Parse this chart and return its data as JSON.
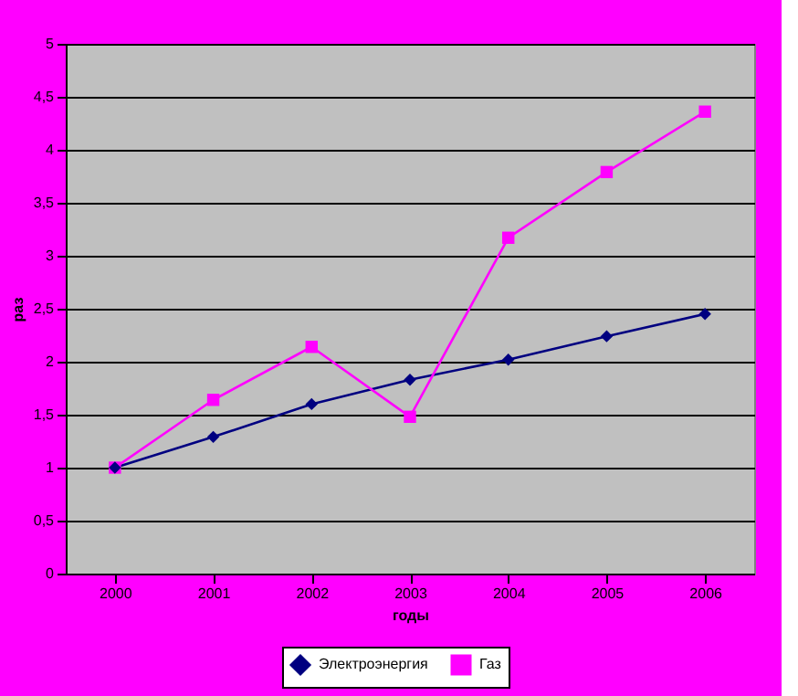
{
  "chart_data": {
    "type": "line",
    "xlabel": "годы",
    "ylabel": "раз",
    "categories": [
      "2000",
      "2001",
      "2002",
      "2003",
      "2004",
      "2005",
      "2006"
    ],
    "series": [
      {
        "name": "Электроэнергия",
        "color": "#000080",
        "marker": "diamond",
        "values": [
          1.0,
          1.29,
          1.6,
          1.83,
          2.02,
          2.24,
          2.45
        ]
      },
      {
        "name": "Газ",
        "color": "#ff00ff",
        "marker": "square",
        "values": [
          1.0,
          1.64,
          2.14,
          1.48,
          3.17,
          3.79,
          4.36
        ]
      }
    ],
    "ylim": [
      0,
      5
    ],
    "yticks": [
      0,
      {
        "value": 0.5,
        "label": "0,5"
      },
      1,
      {
        "value": 1.5,
        "label": "1,5"
      },
      2,
      {
        "value": 2.5,
        "label": "2,5"
      },
      3,
      {
        "value": 3.5,
        "label": "3,5"
      },
      4,
      {
        "value": 4.5,
        "label": "4,5"
      },
      5
    ],
    "grid": "y",
    "legend": "bottom",
    "line_style": "solid"
  }
}
